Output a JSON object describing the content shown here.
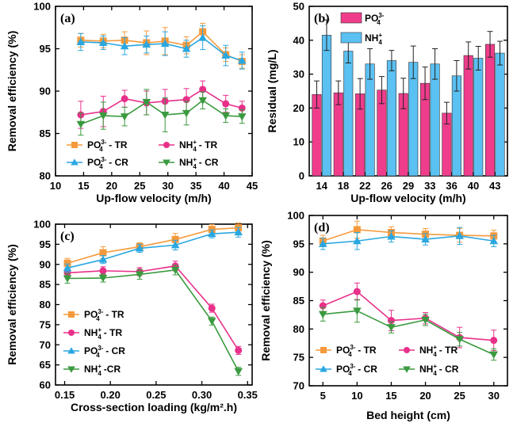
{
  "colors": {
    "orange": "#f59a3c",
    "magenta": "#e8308a",
    "blue": "#2aa7e0",
    "green": "#3a9a3f",
    "bar_pink": "#ef3d8c",
    "bar_blue": "#5bc0f2",
    "error": "#777777"
  },
  "chart_data": [
    {
      "id": "a",
      "panel_label": "(a)",
      "type": "line",
      "xlabel": "Up-flow velocity (m/h)",
      "ylabel": "Removal efficiency (%)",
      "xlim": [
        10,
        45
      ],
      "ylim": [
        80,
        100
      ],
      "xticks": [
        10,
        15,
        20,
        25,
        30,
        35,
        40,
        45
      ],
      "yticks": [
        80,
        85,
        90,
        95,
        100
      ],
      "x": [
        14.5,
        18.5,
        22.3,
        26.2,
        29.5,
        33.3,
        36.2,
        40.3,
        43.2
      ],
      "legend_position": "bottom",
      "series": [
        {
          "key": "PO-TR",
          "label": "PO",
          "sup": "3-",
          "sub": "4",
          "suffix": " - TR",
          "color": "orange",
          "marker": "square",
          "values": [
            96.0,
            95.9,
            96.0,
            95.7,
            95.9,
            95.4,
            97.0,
            94.3,
            93.5
          ],
          "errors": [
            0.8,
            0.8,
            1.0,
            1.4,
            1.6,
            1.0,
            1.0,
            0.8,
            0.8
          ]
        },
        {
          "key": "NH-TR",
          "label": "NH",
          "sup": "+",
          "sub": "4",
          "suffix": " - TR",
          "color": "magenta",
          "marker": "circle",
          "values": [
            87.2,
            87.6,
            89.1,
            88.6,
            88.8,
            89.0,
            90.2,
            88.5,
            88.0
          ],
          "errors": [
            1.6,
            1.8,
            1.0,
            1.4,
            1.4,
            1.3,
            1.0,
            1.0,
            0.8
          ]
        },
        {
          "key": "PO-CR",
          "label": "PO",
          "sup": "3-",
          "sub": "4",
          "suffix": " - CR",
          "color": "blue",
          "marker": "triangle",
          "values": [
            95.8,
            95.7,
            95.3,
            95.5,
            95.6,
            95.0,
            96.3,
            94.2,
            93.6
          ],
          "errors": [
            1.0,
            0.8,
            1.0,
            1.0,
            1.4,
            1.0,
            1.4,
            1.2,
            1.0
          ]
        },
        {
          "key": "NH-CR",
          "label": "NH",
          "sup": "+",
          "sub": "4",
          "suffix": " - CR",
          "color": "green",
          "marker": "triangle-down",
          "values": [
            86.1,
            87.1,
            87.0,
            88.7,
            87.2,
            87.4,
            88.9,
            87.1,
            87.0
          ],
          "errors": [
            1.3,
            1.6,
            1.1,
            1.5,
            2.0,
            1.4,
            1.0,
            0.8,
            0.8
          ]
        }
      ]
    },
    {
      "id": "b",
      "panel_label": "(b)",
      "type": "bar",
      "xlabel": "Up-flow velocity (m/h)",
      "ylabel": "Residual (mg/L)",
      "categories": [
        "14",
        "18",
        "22",
        "26",
        "29",
        "33",
        "36",
        "40",
        "43"
      ],
      "ylim": [
        0,
        50
      ],
      "yticks": [
        0,
        10,
        20,
        30,
        40,
        50
      ],
      "legend_position": "top-left",
      "series": [
        {
          "label": "PO",
          "sup": "3-",
          "sub": "4",
          "color": "bar_pink",
          "values": [
            24.0,
            24.5,
            24.2,
            25.3,
            24.3,
            27.3,
            18.5,
            35.5,
            38.8
          ],
          "errors": [
            4.0,
            3.5,
            4.5,
            4.0,
            4.5,
            4.8,
            3.2,
            4.0,
            3.8
          ]
        },
        {
          "label": "NH",
          "sup": "+",
          "sub": "4",
          "color": "bar_blue",
          "values": [
            41.5,
            36.8,
            33.0,
            34.0,
            33.5,
            33.0,
            29.5,
            34.7,
            36.2
          ],
          "errors": [
            4.5,
            3.5,
            4.5,
            3.0,
            4.8,
            4.5,
            4.5,
            3.5,
            3.5
          ]
        }
      ]
    },
    {
      "id": "c",
      "panel_label": "(c)",
      "type": "line",
      "xlabel": "Cross-section loading (kg/m².h)",
      "ylabel": "Removal efficiency (%)",
      "xlim": [
        0.14,
        0.355
      ],
      "ylim": [
        60,
        100
      ],
      "xticks": [
        0.15,
        0.2,
        0.25,
        0.3,
        0.35
      ],
      "xtick_labels": [
        "0.15",
        "0.20",
        "0.25",
        "0.30",
        "0.35"
      ],
      "yticks": [
        60,
        65,
        70,
        75,
        80,
        85,
        90,
        95,
        100
      ],
      "x": [
        0.153,
        0.192,
        0.232,
        0.271,
        0.311,
        0.34
      ],
      "legend_position": "left",
      "series": [
        {
          "key": "PO-TR",
          "label": "PO",
          "sup": "3-",
          "sub": "4",
          "suffix": " - TR",
          "color": "orange",
          "marker": "square",
          "values": [
            90.3,
            92.9,
            94.4,
            96.2,
            98.7,
            99.1
          ],
          "errors": [
            1.2,
            1.5,
            1.0,
            1.5,
            1.2,
            1.2
          ]
        },
        {
          "key": "NH-TR",
          "label": "NH",
          "sup": "+",
          "sub": "4",
          "suffix": " - TR",
          "color": "magenta",
          "marker": "circle",
          "values": [
            87.9,
            88.4,
            88.2,
            89.6,
            79.1,
            68.6
          ],
          "errors": [
            1.2,
            1.0,
            1.0,
            1.2,
            1.0,
            1.0
          ]
        },
        {
          "key": "PO-CR",
          "label": "PO",
          "sup": "3-",
          "sub": "4",
          "suffix": " - CR",
          "color": "blue",
          "marker": "triangle",
          "values": [
            89.1,
            91.2,
            94.0,
            94.8,
            97.6,
            98.0
          ],
          "errors": [
            1.0,
            1.0,
            1.0,
            1.2,
            1.0,
            1.2
          ]
        },
        {
          "key": "NH-CR",
          "label": "NH",
          "sup": "+",
          "sub": "4",
          "suffix": " -CR",
          "color": "green",
          "marker": "triangle-down",
          "values": [
            86.5,
            86.6,
            87.5,
            88.6,
            75.9,
            63.4
          ],
          "errors": [
            1.2,
            1.0,
            1.2,
            1.2,
            1.0,
            1.0
          ]
        }
      ]
    },
    {
      "id": "d",
      "panel_label": "(d)",
      "type": "line",
      "xlabel": "Bed height (cm)",
      "ylabel": "Removal efficiency (%)",
      "xlim": [
        3,
        32
      ],
      "ylim": [
        70,
        100
      ],
      "xticks": [
        5,
        10,
        15,
        20,
        25,
        30
      ],
      "yticks": [
        70,
        75,
        80,
        85,
        90,
        95,
        100
      ],
      "x": [
        5,
        10,
        15,
        20,
        25,
        30
      ],
      "legend_position": "bottom",
      "series": [
        {
          "key": "PO-TR",
          "label": "PO",
          "sup": "3-",
          "sub": "4",
          "suffix": " - TR",
          "color": "orange",
          "marker": "square",
          "values": [
            95.5,
            97.5,
            97.0,
            96.7,
            96.5,
            96.4
          ],
          "errors": [
            1.0,
            1.5,
            1.0,
            1.0,
            1.2,
            1.0
          ]
        },
        {
          "key": "NH-TR",
          "label": "NH",
          "sup": "+",
          "sub": "4",
          "suffix": " - TR",
          "color": "magenta",
          "marker": "circle",
          "values": [
            84.1,
            86.6,
            81.5,
            81.9,
            78.5,
            78.0
          ],
          "errors": [
            1.0,
            1.5,
            1.8,
            1.0,
            1.8,
            1.8
          ]
        },
        {
          "key": "PO-CR",
          "label": "PO",
          "sup": "3-",
          "sub": "4",
          "suffix": " - CR",
          "color": "blue",
          "marker": "triangle",
          "values": [
            95.0,
            95.5,
            96.3,
            95.8,
            96.4,
            95.5
          ],
          "errors": [
            1.0,
            1.5,
            1.0,
            1.0,
            1.5,
            1.0
          ]
        },
        {
          "key": "NH-CR",
          "label": "NH",
          "sup": "+",
          "sub": "4",
          "suffix": " - CR",
          "color": "green",
          "marker": "triangle-down",
          "values": [
            82.6,
            83.2,
            80.3,
            81.6,
            78.2,
            75.5
          ],
          "errors": [
            1.2,
            2.0,
            1.0,
            1.0,
            1.2,
            1.0
          ]
        }
      ]
    }
  ]
}
